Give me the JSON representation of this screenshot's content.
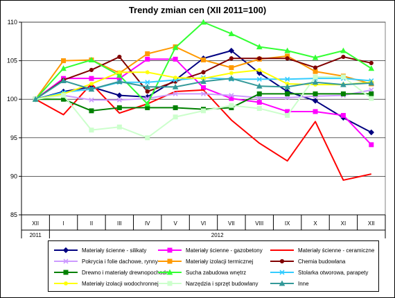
{
  "chart_data": {
    "type": "line",
    "title": "Trendy zmian cen (XII 2011=100)",
    "categories": [
      "XII",
      "I",
      "II",
      "III",
      "IV",
      "V",
      "VI",
      "VII",
      "VIII",
      "IX",
      "X",
      "XI",
      "XII"
    ],
    "year_labels": [
      "2011",
      "2012"
    ],
    "ylim": [
      85,
      110
    ],
    "yticks": [
      85,
      90,
      95,
      100,
      105,
      110
    ],
    "grid": "horizontal",
    "legend_position": "bottom",
    "series": [
      {
        "name": "Materiały ścienne - silikaty",
        "color": "#000080",
        "marker": "diamond",
        "values": [
          100,
          101.0,
          101.6,
          100.5,
          100.3,
          102.5,
          105.3,
          106.3,
          103.4,
          101.0,
          99.8,
          97.6,
          95.7
        ]
      },
      {
        "name": "Materiały ścienne - gazobetony",
        "color": "#ff00ff",
        "marker": "square",
        "values": [
          100,
          102.7,
          102.7,
          102.7,
          105.2,
          105.2,
          101.5,
          100.1,
          99.6,
          98.4,
          98.4,
          97.9,
          94.1
        ]
      },
      {
        "name": "Materiały ścienne - ceramiczne",
        "color": "#ff0000",
        "marker": "none",
        "values": [
          100,
          98.0,
          102.0,
          98.2,
          99.4,
          101.0,
          101.2,
          97.3,
          94.3,
          92.0,
          97.1,
          89.5,
          90.3
        ]
      },
      {
        "name": "Pokrycia i folie dachowe, rynny",
        "color": "#cc99ff",
        "marker": "x",
        "values": [
          100,
          100.5,
          99.9,
          99.9,
          100.1,
          100.7,
          100.7,
          100.5,
          100.2,
          100.2,
          100.4,
          100.5,
          101.2
        ]
      },
      {
        "name": "Materiały izolacji termicznej",
        "color": "#ff9900",
        "marker": "square",
        "values": [
          100,
          105.0,
          105.1,
          103.4,
          105.9,
          106.8,
          105.1,
          104.1,
          105.2,
          105.6,
          103.6,
          103.0,
          102.0
        ]
      },
      {
        "name": "Chemia budowlana",
        "color": "#800000",
        "marker": "circle",
        "values": [
          100,
          102.5,
          103.8,
          105.5,
          101.0,
          102.3,
          103.5,
          105.3,
          105.3,
          105.3,
          104.1,
          105.5,
          104.7
        ]
      },
      {
        "name": "Drewno i materiały drewnopochodne",
        "color": "#008000",
        "marker": "square",
        "values": [
          100,
          100.0,
          98.5,
          98.9,
          98.9,
          98.9,
          98.7,
          98.9,
          100.7,
          100.7,
          100.7,
          100.7,
          100.7
        ]
      },
      {
        "name": "Sucha zabudowa wnętrz",
        "color": "#33ff33",
        "marker": "triangle",
        "values": [
          100,
          104.0,
          105.1,
          103.1,
          99.4,
          106.7,
          110.0,
          108.5,
          106.8,
          106.3,
          105.4,
          106.3,
          104.0
        ]
      },
      {
        "name": "Stolarka otworowa, parapety",
        "color": "#33ccff",
        "marker": "x",
        "values": [
          100,
          100.9,
          101.3,
          102.2,
          102.2,
          102.5,
          102.8,
          102.6,
          102.6,
          102.6,
          102.7,
          102.7,
          102.4
        ]
      },
      {
        "name": "Materiały izolacji wodochronnej",
        "color": "#ffff00",
        "marker": "star",
        "values": [
          100,
          100.7,
          102.0,
          103.5,
          103.5,
          102.8,
          102.7,
          103.4,
          103.8,
          102.0,
          101.9,
          101.9,
          102.2
        ]
      },
      {
        "name": "Narzędzia i sprzęt budowlany",
        "color": "#ccffcc",
        "marker": "square",
        "values": [
          100,
          100.5,
          96.0,
          96.4,
          95.0,
          97.7,
          98.5,
          99.2,
          98.8,
          97.9,
          102.9,
          102.9,
          100.1
        ]
      },
      {
        "name": "Inne",
        "color": "#339999",
        "marker": "triangle",
        "values": [
          100,
          102.4,
          101.3,
          102.3,
          101.6,
          101.6,
          102.3,
          102.7,
          101.7,
          101.6,
          102.2,
          101.9,
          102.1
        ]
      }
    ]
  }
}
